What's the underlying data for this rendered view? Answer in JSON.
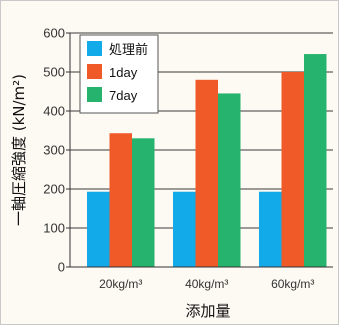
{
  "chart_data": {
    "type": "bar",
    "categories": [
      "20kg/m³",
      "40kg/m³",
      "60kg/m³"
    ],
    "series": [
      {
        "name": "処理前",
        "values": [
          193,
          193,
          193
        ],
        "color": "#12aae8"
      },
      {
        "name": "1day",
        "values": [
          343,
          480,
          500
        ],
        "color": "#f05a28"
      },
      {
        "name": "7day",
        "values": [
          330,
          445,
          546
        ],
        "color": "#26b36d"
      }
    ],
    "xlabel": "添加量",
    "ylabel": "一軸圧縮強度 (kN/m²)",
    "ylim": [
      0,
      600
    ],
    "yticks": [
      0,
      100,
      200,
      300,
      400,
      500,
      600
    ],
    "grid": true,
    "legend_position": "top-left"
  }
}
